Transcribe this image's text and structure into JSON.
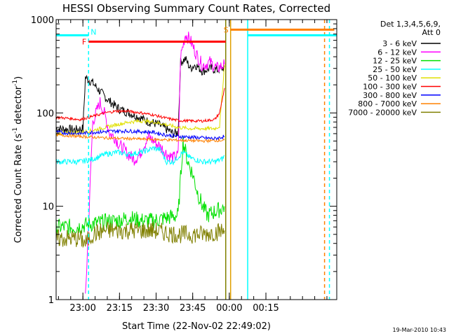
{
  "chart_data": {
    "type": "line",
    "title": "HESSI Observing Summary Count Rates, Corrected",
    "xlabel": "Start Time (22-Nov-02 22:49:02)",
    "ylabel": "Corrected Count Rate (s",
    "ylabel_exp1": "-1",
    "ylabel_mid": " detector",
    "ylabel_exp2": "-1",
    "ylabel_end": ")",
    "yscale": "log",
    "ylim": [
      1,
      1000
    ],
    "xlim_minutes_after_start": [
      0,
      115
    ],
    "yticks": [
      {
        "value": 1,
        "label": "1"
      },
      {
        "value": 10,
        "label": "10"
      },
      {
        "value": 100,
        "label": "100"
      },
      {
        "value": 1000,
        "label": "1000"
      }
    ],
    "xticks": [
      {
        "minute": 10.97,
        "label": "23:00"
      },
      {
        "minute": 25.97,
        "label": "23:15"
      },
      {
        "minute": 40.97,
        "label": "23:30"
      },
      {
        "minute": 55.97,
        "label": "23:45"
      },
      {
        "minute": 70.97,
        "label": "00:00"
      },
      {
        "minute": 85.97,
        "label": "00:15"
      }
    ],
    "legend_placement": "right",
    "legend_header": [
      "Det 1,3,4,5,6,9,",
      "Att 0"
    ],
    "series": [
      {
        "name": "3 - 6 keV",
        "color": "#000000",
        "points": [
          [
            0,
            68
          ],
          [
            8,
            66
          ],
          [
            11,
            68
          ],
          [
            12,
            240
          ],
          [
            15,
            210
          ],
          [
            18,
            170
          ],
          [
            21,
            140
          ],
          [
            24,
            120
          ],
          [
            26,
            110
          ],
          [
            28,
            105
          ],
          [
            30,
            100
          ],
          [
            32,
            95
          ],
          [
            34,
            90
          ],
          [
            36,
            85
          ],
          [
            38,
            80
          ],
          [
            40,
            78
          ],
          [
            42,
            75
          ],
          [
            44,
            70
          ],
          [
            46,
            65
          ],
          [
            48,
            60
          ],
          [
            50,
            62
          ],
          [
            51,
            350
          ],
          [
            53,
            380
          ],
          [
            55,
            300
          ],
          [
            57,
            330
          ],
          [
            60,
            280
          ],
          [
            63,
            300
          ],
          [
            66,
            290
          ],
          [
            68,
            300
          ],
          [
            69,
            310
          ]
        ]
      },
      {
        "name": "6 - 12 keV",
        "color": "#ff00ff",
        "points": [
          [
            12,
            1
          ],
          [
            15,
            80
          ],
          [
            18,
            130
          ],
          [
            20,
            95
          ],
          [
            22,
            60
          ],
          [
            24,
            55
          ],
          [
            26,
            45
          ],
          [
            28,
            40
          ],
          [
            30,
            35
          ],
          [
            32,
            32
          ],
          [
            34,
            35
          ],
          [
            36,
            45
          ],
          [
            38,
            55
          ],
          [
            40,
            50
          ],
          [
            42,
            45
          ],
          [
            44,
            40
          ],
          [
            46,
            35
          ],
          [
            48,
            33
          ],
          [
            50,
            35
          ],
          [
            51,
            400
          ],
          [
            53,
            700
          ],
          [
            55,
            600
          ],
          [
            57,
            450
          ],
          [
            60,
            320
          ],
          [
            63,
            350
          ],
          [
            66,
            300
          ],
          [
            68,
            320
          ],
          [
            69,
            330
          ]
        ]
      },
      {
        "name": "12 - 25 keV",
        "color": "#00e000",
        "points": [
          [
            0,
            6
          ],
          [
            8,
            6
          ],
          [
            15,
            6.5
          ],
          [
            20,
            6.8
          ],
          [
            25,
            7
          ],
          [
            30,
            7.5
          ],
          [
            35,
            7
          ],
          [
            40,
            7
          ],
          [
            45,
            7.5
          ],
          [
            50,
            8
          ],
          [
            52,
            50
          ],
          [
            54,
            30
          ],
          [
            56,
            22
          ],
          [
            58,
            14
          ],
          [
            60,
            10
          ],
          [
            62,
            8
          ],
          [
            64,
            8.5
          ],
          [
            66,
            9
          ],
          [
            68,
            9.5
          ],
          [
            69,
            10
          ]
        ]
      },
      {
        "name": "25 - 50 keV",
        "color": "#00ffff",
        "points": [
          [
            0,
            30
          ],
          [
            10,
            30
          ],
          [
            15,
            32
          ],
          [
            20,
            36
          ],
          [
            25,
            38
          ],
          [
            30,
            36
          ],
          [
            35,
            38
          ],
          [
            40,
            42
          ],
          [
            43,
            40
          ],
          [
            45,
            30
          ],
          [
            48,
            30
          ],
          [
            52,
            38
          ],
          [
            55,
            33
          ],
          [
            60,
            30
          ],
          [
            65,
            30
          ],
          [
            68,
            32
          ],
          [
            69,
            35
          ]
        ]
      },
      {
        "name": "50 - 100 keV",
        "color": "#e0e000",
        "points": [
          [
            0,
            60
          ],
          [
            10,
            62
          ],
          [
            15,
            65
          ],
          [
            20,
            70
          ],
          [
            25,
            75
          ],
          [
            30,
            80
          ],
          [
            35,
            82
          ],
          [
            40,
            80
          ],
          [
            45,
            75
          ],
          [
            50,
            70
          ],
          [
            55,
            68
          ],
          [
            60,
            68
          ],
          [
            65,
            68
          ],
          [
            67,
            72
          ],
          [
            69,
            330
          ]
        ]
      },
      {
        "name": "100 - 300 keV",
        "color": "#ff0000",
        "points": [
          [
            0,
            90
          ],
          [
            10,
            85
          ],
          [
            15,
            92
          ],
          [
            20,
            100
          ],
          [
            25,
            105
          ],
          [
            30,
            104
          ],
          [
            35,
            100
          ],
          [
            40,
            95
          ],
          [
            45,
            88
          ],
          [
            50,
            83
          ],
          [
            55,
            82
          ],
          [
            60,
            82
          ],
          [
            65,
            85
          ],
          [
            67,
            100
          ],
          [
            69,
            185
          ]
        ]
      },
      {
        "name": "300 - 800 keV",
        "color": "#0000ff",
        "points": [
          [
            0,
            62
          ],
          [
            10,
            60
          ],
          [
            15,
            62
          ],
          [
            20,
            63
          ],
          [
            25,
            64
          ],
          [
            30,
            64
          ],
          [
            35,
            63
          ],
          [
            40,
            62
          ],
          [
            45,
            58
          ],
          [
            50,
            56
          ],
          [
            55,
            55
          ],
          [
            60,
            54
          ],
          [
            65,
            53
          ],
          [
            69,
            56
          ]
        ]
      },
      {
        "name": "800 - 7000 keV",
        "color": "#ff8000",
        "points": [
          [
            0,
            58
          ],
          [
            10,
            56
          ],
          [
            20,
            54
          ],
          [
            30,
            53
          ],
          [
            40,
            52
          ],
          [
            50,
            51
          ],
          [
            60,
            50
          ],
          [
            69,
            51
          ]
        ]
      },
      {
        "name": "7000 - 20000 keV",
        "color": "#808000",
        "points": [
          [
            0,
            4.5
          ],
          [
            10,
            4.5
          ],
          [
            12,
            4
          ],
          [
            15,
            5
          ],
          [
            20,
            5.5
          ],
          [
            25,
            5.5
          ],
          [
            30,
            5.5
          ],
          [
            35,
            5.5
          ],
          [
            40,
            5.5
          ],
          [
            45,
            5.2
          ],
          [
            50,
            5
          ],
          [
            55,
            5
          ],
          [
            60,
            5
          ],
          [
            69,
            5.5
          ]
        ]
      }
    ],
    "flag_bars": [
      {
        "label": "F",
        "color": "#ff0000",
        "x_start": 13.3,
        "x_end": 69.5,
        "value": 580
      },
      {
        "label": "N",
        "color": "#00ffff",
        "x_start": 0,
        "x_end": 13.3,
        "value": 680
      },
      {
        "label": "S",
        "color": "#ff8000",
        "x_start": 71.5,
        "x_end": 114,
        "value": 780
      },
      {
        "label": "",
        "color": "#00ffff",
        "x_start": 78.5,
        "x_end": 115,
        "value": 680
      }
    ],
    "vertical_markers": [
      {
        "x": 13.3,
        "color": "#00ffff",
        "style": "dashed"
      },
      {
        "x": 69.5,
        "color": "#808000",
        "style": "solid"
      },
      {
        "x": 71.5,
        "color": "#e0a000",
        "style": "solid"
      },
      {
        "x": 78.5,
        "color": "#00ffff",
        "style": "solid"
      },
      {
        "x": 110.0,
        "color": "#ff8000",
        "style": "dashed"
      },
      {
        "x": 112.0,
        "color": "#00ffff",
        "style": "dashed"
      }
    ]
  },
  "footer": {
    "timestamp": "19-Mar-2010 10:43"
  }
}
